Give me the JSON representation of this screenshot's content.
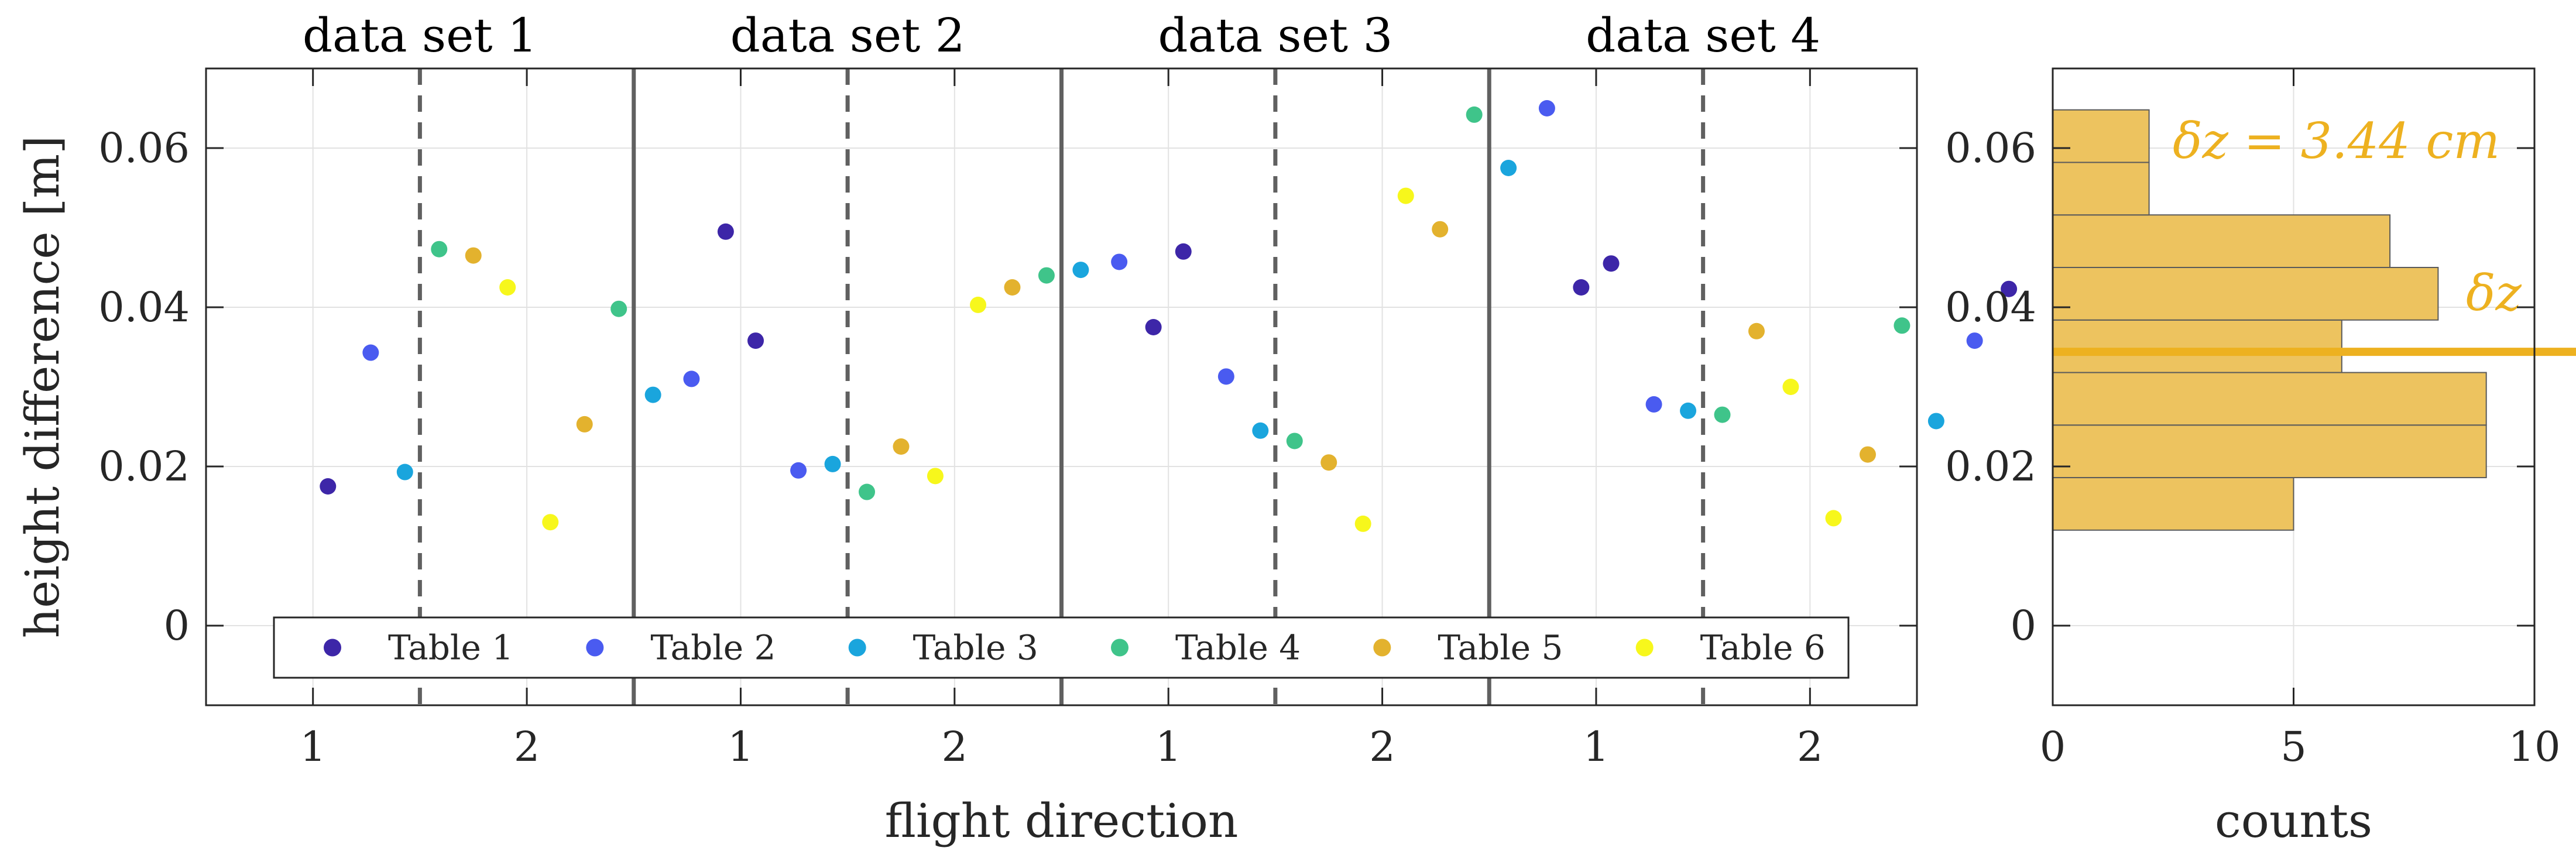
{
  "colors": {
    "table1": "#3D26A8",
    "table2": "#4A5BF0",
    "table3": "#1AA5DD",
    "table4": "#3FC48A",
    "table5": "#E3B22E",
    "table6": "#F7F71C",
    "accent": "#EDB120"
  },
  "chart_data": [
    {
      "type": "scatter",
      "titles": [
        "data set 1",
        "data set 2",
        "data set 3",
        "data set 4"
      ],
      "xlabel": "flight direction",
      "ylabel": "height difference [m]",
      "ylim": [
        -0.01,
        0.07
      ],
      "yticks": [
        0,
        0.02,
        0.04,
        0.06
      ],
      "ytick_labels": [
        "0",
        "0.02",
        "0.04",
        "0.06"
      ],
      "xtick_labels": [
        "1",
        "2",
        "1",
        "2",
        "1",
        "2",
        "1",
        "2"
      ],
      "grid": true,
      "legend": {
        "position": "bottom",
        "entries": [
          "Table 1",
          "Table 2",
          "Table 3",
          "Table 4",
          "Table 5",
          "Table 6"
        ]
      },
      "series": [
        {
          "name": "Table 1",
          "x": [
            0.57,
            2.43,
            2.57,
            4.43,
            4.57,
            6.43,
            6.57,
            8.43
          ],
          "values": [
            0.0175,
            0.0495,
            0.0358,
            0.0375,
            0.047,
            0.0425,
            0.0455,
            0.0423
          ]
        },
        {
          "name": "Table 2",
          "x": [
            0.77,
            2.27,
            2.77,
            4.27,
            4.77,
            6.27,
            6.77,
            8.27
          ],
          "values": [
            0.0343,
            0.031,
            0.0195,
            0.0457,
            0.0313,
            0.065,
            0.0278,
            0.0358
          ]
        },
        {
          "name": "Table 3",
          "x": [
            0.93,
            2.09,
            2.93,
            4.09,
            4.93,
            6.09,
            6.93,
            8.09
          ],
          "values": [
            0.0193,
            0.029,
            0.0203,
            0.0447,
            0.0245,
            0.0575,
            0.027,
            0.0257
          ]
        },
        {
          "name": "Table 4",
          "x": [
            1.09,
            1.93,
            3.09,
            3.93,
            5.09,
            5.93,
            7.09,
            7.93
          ],
          "values": [
            0.0473,
            0.0398,
            0.0168,
            0.044,
            0.0232,
            0.0642,
            0.0265,
            0.0377
          ]
        },
        {
          "name": "Table 5",
          "x": [
            1.25,
            1.77,
            3.25,
            3.77,
            5.25,
            5.77,
            7.25,
            7.77
          ],
          "values": [
            0.0465,
            0.0253,
            0.0225,
            0.0425,
            0.0205,
            0.0498,
            0.037,
            0.0215
          ]
        },
        {
          "name": "Table 6",
          "x": [
            1.41,
            1.61,
            3.41,
            3.61,
            5.41,
            5.61,
            7.41,
            7.61
          ],
          "values": [
            0.0425,
            0.013,
            0.0188,
            0.0403,
            0.0128,
            0.054,
            0.03,
            0.0135
          ]
        }
      ]
    },
    {
      "type": "bar",
      "orientation": "horizontal",
      "xlabel": "counts",
      "xlim": [
        0,
        10
      ],
      "xticks": [
        0,
        5,
        10
      ],
      "ylim": [
        -0.01,
        0.07
      ],
      "yticks": [
        0,
        0.02,
        0.04,
        0.06
      ],
      "ytick_labels": [
        "0",
        "0.02",
        "0.04",
        "0.06"
      ],
      "bin_width": 0.0066,
      "bins": [
        {
          "start": 0.012,
          "count": 5
        },
        {
          "start": 0.0186,
          "count": 9
        },
        {
          "start": 0.0252,
          "count": 9
        },
        {
          "start": 0.0318,
          "count": 6
        },
        {
          "start": 0.0384,
          "count": 8
        },
        {
          "start": 0.045,
          "count": 7
        },
        {
          "start": 0.0516,
          "count": 2
        },
        {
          "start": 0.0582,
          "count": 2
        }
      ],
      "mean_line": {
        "value": 0.0344,
        "label": "δz"
      },
      "annotation": "δz = 3.44 cm"
    }
  ]
}
